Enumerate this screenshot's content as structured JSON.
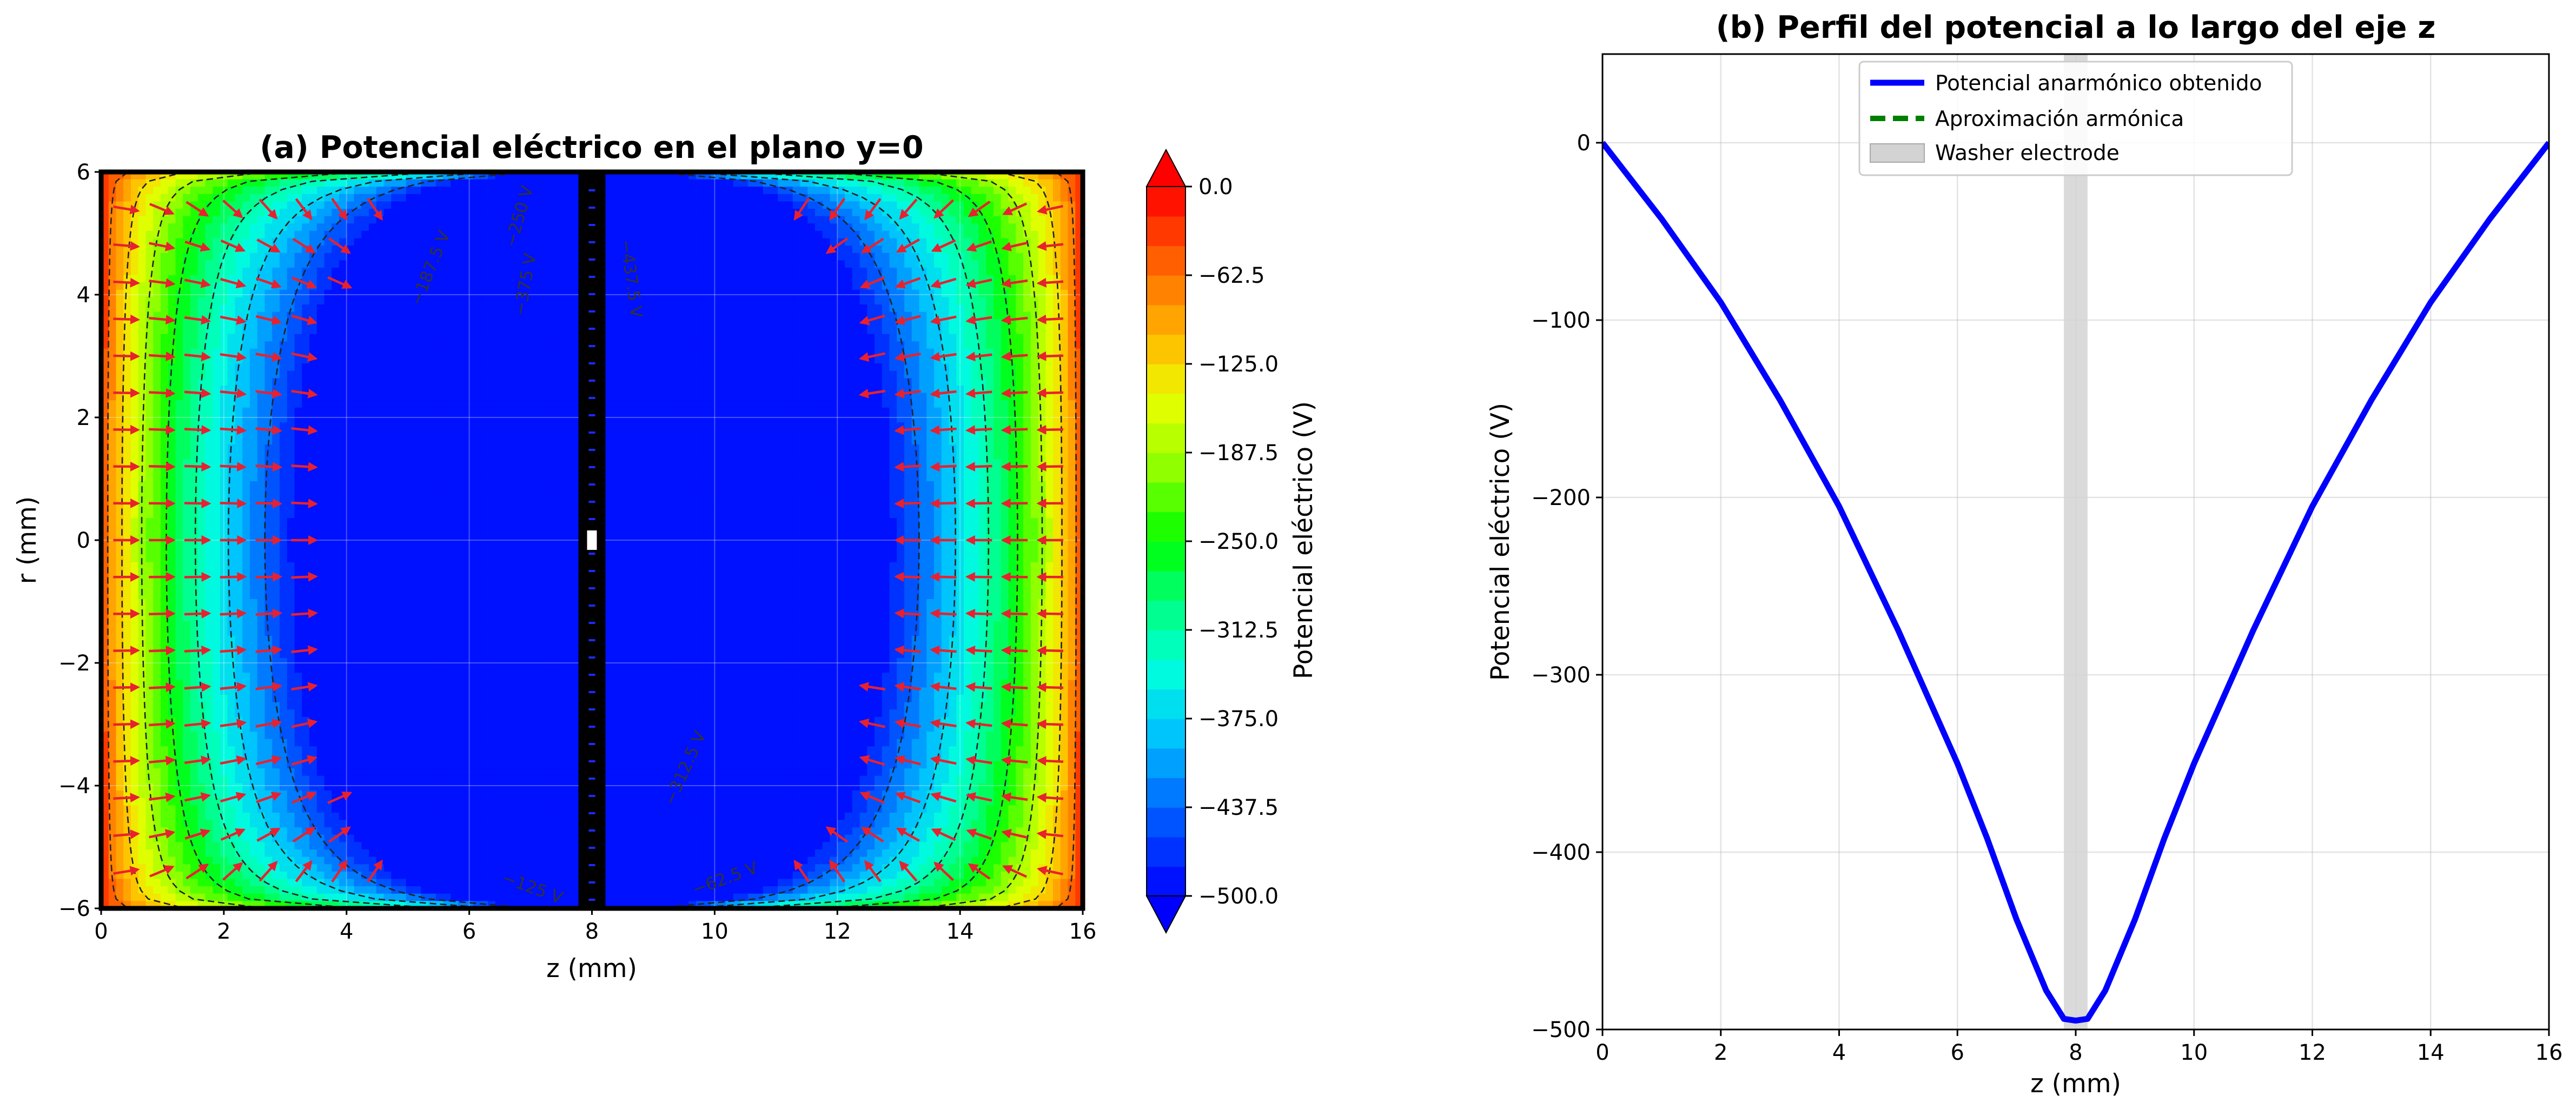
{
  "chart_data": [
    {
      "type": "heatmap",
      "title": "(a) Potencial eléctrico en el plano y=0",
      "xlabel": "z (mm)",
      "ylabel": "r (mm)",
      "xlim": [
        0,
        16
      ],
      "ylim": [
        -6,
        6
      ],
      "xticks": [
        "0",
        "2",
        "4",
        "6",
        "8",
        "10",
        "12",
        "14",
        "16"
      ],
      "yticks": [
        "6",
        "4",
        "2",
        "0",
        "−2",
        "−4",
        "−6"
      ],
      "colorbar": {
        "label": "Potencial eléctrico (V)",
        "range": [
          -500,
          0
        ],
        "levels": 24,
        "ticks": [
          "0.0",
          "−62.5",
          "−125.0",
          "−187.5",
          "−250.0",
          "−312.5",
          "−375.0",
          "−437.5",
          "−500.0"
        ],
        "colormap": "hsv",
        "extend": "both"
      },
      "electrode_z": 8,
      "contour_levels": [
        -62.5,
        -125,
        -187.5,
        -250,
        -312.5,
        -375,
        -437.5
      ],
      "contour_labels": [
        {
          "text": "−187.5 V",
          "z": 5.45,
          "r": 4.4,
          "angle": -68
        },
        {
          "text": "−250 V",
          "z": 6.9,
          "r": 5.25,
          "angle": -74
        },
        {
          "text": "−375 V",
          "z": 7.0,
          "r": 4.15,
          "angle": -80
        },
        {
          "text": "−437.5 V",
          "z": 8.55,
          "r": 4.25,
          "angle": 82
        },
        {
          "text": "−312.5 V",
          "z": 9.6,
          "r": -3.75,
          "angle": -66
        },
        {
          "text": "−125 V",
          "z": 7.0,
          "r": -5.75,
          "angle": 20
        },
        {
          "text": "−62.5 V",
          "z": 10.2,
          "r": -5.6,
          "angle": -20
        }
      ],
      "field_arrows": true,
      "grid": true
    },
    {
      "type": "line",
      "title": "(b) Perfil del potencial a lo largo del eje z",
      "xlabel": "z (mm)",
      "ylabel": "Potencial eléctrico (V)",
      "xlim": [
        0,
        16
      ],
      "ylim": [
        -500,
        50
      ],
      "xticks": [
        "0",
        "2",
        "4",
        "6",
        "8",
        "10",
        "12",
        "14",
        "16"
      ],
      "yticks": [
        "0",
        "−100",
        "−200",
        "−300",
        "−400",
        "−500"
      ],
      "grid": true,
      "legend": "top-center",
      "series": [
        {
          "name": "Potencial anarmónico obtenido",
          "color": "#0000ff",
          "style": "solid",
          "x": [
            0,
            1,
            2,
            3,
            4,
            5,
            6,
            6.5,
            7,
            7.5,
            7.8,
            8,
            8.2,
            8.5,
            9,
            9.5,
            10,
            11,
            12,
            13,
            14,
            15,
            16
          ],
          "y": [
            0,
            -43,
            -90,
            -145,
            -205,
            -275,
            -350,
            -392,
            -438,
            -478,
            -494,
            -495,
            -494,
            -478,
            -438,
            -392,
            -350,
            -275,
            -205,
            -145,
            -90,
            -43,
            0
          ]
        },
        {
          "name": "Aproximación armónica",
          "color": "#008000",
          "style": "dashed",
          "x": [],
          "y": []
        }
      ],
      "bands": [
        {
          "name": "Washer electrode",
          "x": [
            7.8,
            8.2
          ],
          "color": "#d3d3d3"
        }
      ]
    }
  ]
}
